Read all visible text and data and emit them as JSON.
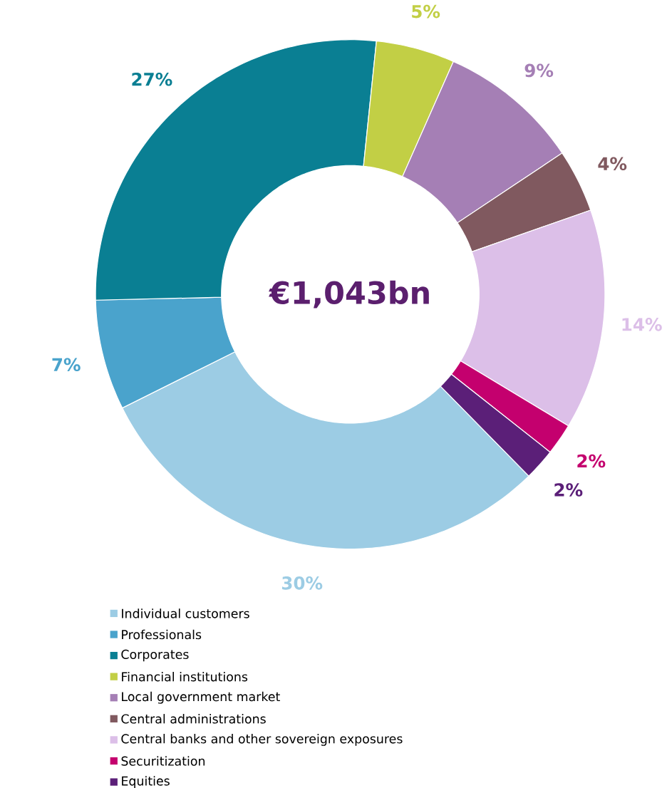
{
  "chart_data": {
    "type": "donut",
    "categories": [
      "Individual customers",
      "Professionals",
      "Corporates",
      "Financial institutions",
      "Local government market",
      "Central administrations",
      "Central banks and other sovereign exposures",
      "Securitization",
      "Equities"
    ],
    "values": [
      30,
      7,
      27,
      5,
      9,
      4,
      14,
      2,
      2
    ],
    "value_labels": [
      "30%",
      "7%",
      "27%",
      "5%",
      "9%",
      "4%",
      "14%",
      "2%",
      "2%"
    ],
    "colors": [
      "#9ccce4",
      "#4aa3cc",
      "#0a7f93",
      "#c2cf45",
      "#a57fb5",
      "#80595f",
      "#dcbfe8",
      "#c4006e",
      "#5b1f78"
    ],
    "annotations": [
      "€1,043bn"
    ],
    "legend": "bottom"
  }
}
